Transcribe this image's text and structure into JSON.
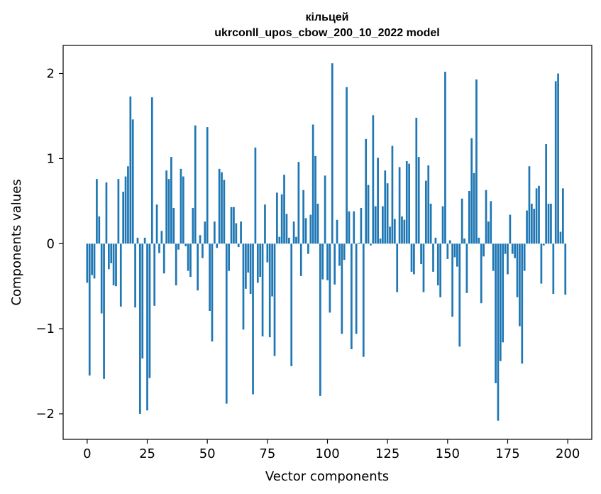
{
  "chart_data": {
    "type": "bar",
    "title": "кільцей",
    "subtitle": "ukrconll_upos_cbow_200_10_2022 model",
    "xlabel": "Vector components",
    "ylabel": "Components values",
    "xlim": [
      -10,
      210
    ],
    "ylim": [
      -2.3,
      2.33
    ],
    "xticks": [
      0,
      25,
      50,
      75,
      100,
      125,
      150,
      175,
      200
    ],
    "yticks": [
      -2,
      -1,
      0,
      1,
      2
    ],
    "ytick_labels": [
      "−2",
      "−1",
      "0",
      "1",
      "2"
    ],
    "grid": false,
    "legend": "none",
    "bar_color": "#1f77b4",
    "values": [
      -0.46,
      -1.55,
      -0.37,
      -0.41,
      0.76,
      0.32,
      -0.82,
      -1.59,
      0.72,
      -0.3,
      -0.23,
      -0.49,
      -0.5,
      0.76,
      -0.74,
      0.61,
      0.79,
      0.91,
      1.73,
      1.46,
      -0.75,
      0.07,
      -2.0,
      -1.35,
      0.07,
      -1.96,
      -1.58,
      1.72,
      -0.73,
      0.46,
      -0.11,
      0.15,
      -0.35,
      0.86,
      0.76,
      1.02,
      0.42,
      -0.49,
      -0.07,
      0.88,
      0.79,
      -0.03,
      -0.32,
      -0.39,
      0.42,
      1.39,
      -0.55,
      0.1,
      -0.17,
      0.26,
      1.37,
      -0.79,
      -1.15,
      0.26,
      -0.05,
      0.88,
      0.84,
      0.75,
      -1.88,
      -0.32,
      0.43,
      0.43,
      0.24,
      -0.04,
      0.26,
      -1.01,
      -0.53,
      -0.34,
      -0.59,
      -1.77,
      1.13,
      -0.46,
      -0.39,
      -1.09,
      0.46,
      -0.22,
      -1.1,
      -0.62,
      -1.32,
      0.6,
      0.08,
      0.58,
      0.81,
      0.35,
      0.07,
      -1.44,
      0.26,
      0.08,
      0.96,
      -0.38,
      0.63,
      0.3,
      -0.12,
      0.34,
      1.4,
      1.03,
      0.47,
      -1.79,
      -0.42,
      0.8,
      -0.43,
      -0.81,
      2.12,
      -0.48,
      0.28,
      -0.26,
      -1.06,
      -0.19,
      1.84,
      0.38,
      -1.24,
      0.38,
      -1.06,
      0.01,
      0.42,
      -1.33,
      1.23,
      0.69,
      -0.02,
      1.51,
      0.44,
      1.01,
      0.06,
      0.44,
      0.86,
      0.71,
      0.2,
      1.15,
      0.29,
      -0.57,
      0.9,
      0.32,
      0.28,
      0.97,
      0.94,
      -0.33,
      -0.36,
      1.48,
      1.02,
      -0.24,
      -0.57,
      0.74,
      0.92,
      0.47,
      -0.33,
      0.07,
      -0.49,
      -0.63,
      0.44,
      2.02,
      -0.18,
      0.04,
      -0.86,
      -0.16,
      -0.27,
      -1.21,
      0.53,
      0.06,
      -0.58,
      0.62,
      1.24,
      0.83,
      1.93,
      0.07,
      -0.7,
      -0.15,
      0.63,
      0.26,
      0.5,
      -0.32,
      -1.64,
      -2.08,
      -1.38,
      -1.16,
      -0.12,
      -0.36,
      0.34,
      -0.12,
      -0.17,
      -0.63,
      -0.97,
      -1.41,
      -0.32,
      0.39,
      0.91,
      0.47,
      0.41,
      0.65,
      0.68,
      -0.47,
      -0.02,
      1.17,
      0.47,
      0.47,
      -0.59,
      1.91,
      2.0,
      0.14,
      0.65,
      -0.6
    ]
  }
}
